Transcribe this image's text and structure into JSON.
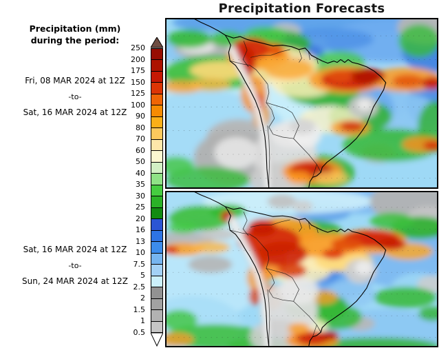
{
  "title": "Precipitation Forecasts",
  "legend": {
    "heading_line1": "Precipitation (mm)",
    "heading_line2": "during the period:",
    "period1": {
      "from": "Fri, 08 MAR 2024 at 12Z",
      "separator": "-to-",
      "to": "Sat, 16 MAR 2024 at 12Z"
    },
    "period2": {
      "from": "Sat, 16 MAR 2024 at 12Z",
      "separator": "-to-",
      "to": "Sun, 24 MAR 2024 at 12Z"
    }
  },
  "colorbar": {
    "units": "mm",
    "ticks": [
      "250",
      "200",
      "175",
      "150",
      "125",
      "100",
      "90",
      "80",
      "70",
      "60",
      "50",
      "40",
      "35",
      "30",
      "25",
      "20",
      "16",
      "13",
      "10",
      "7.5",
      "5",
      "2.5",
      "2",
      "1.5",
      "1",
      "0.5"
    ],
    "segment_colors": [
      "#970e02",
      "#ad1200",
      "#c51804",
      "#dc3505",
      "#ef6505",
      "#f68b03",
      "#fbaf18",
      "#fdc95d",
      "#fee7a9",
      "#fbf7d0",
      "#d2f0c4",
      "#8fe286",
      "#45cc40",
      "#2bb227",
      "#128c12",
      "#2b55d4",
      "#2e74e3",
      "#3c8ceb",
      "#76b5f0",
      "#a3d1f6",
      "#cbf0fb",
      "#929292",
      "#a2a2a2",
      "#b2b2b2",
      "#c6c6c6"
    ],
    "overflow_arrow_color": "#6f4d42",
    "underflow_arrow_color": "#ffffff"
  },
  "panels": [
    {
      "id": "period-1",
      "from": "Fri, 08 MAR 2024 at 12Z",
      "to": "Sat, 16 MAR 2024 at 12Z"
    },
    {
      "id": "period-2",
      "from": "Sat, 16 MAR 2024 at 12Z",
      "to": "Sun, 24 MAR 2024 at 12Z"
    }
  ]
}
